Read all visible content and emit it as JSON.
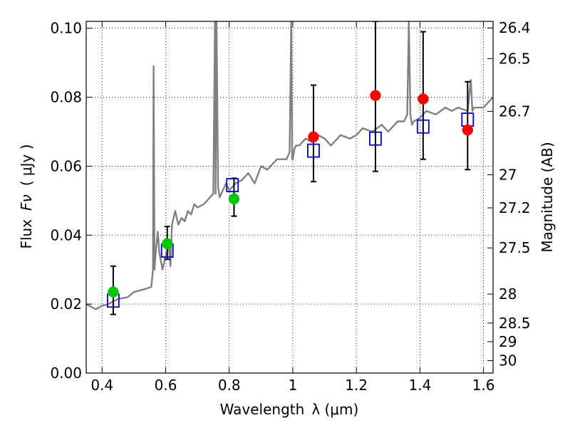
{
  "chart_data": {
    "type": "scatter",
    "xlabel": "Wavelength",
    "xlabel_symbol": "λ (μm)",
    "ylabel": "Flux",
    "ylabel_symbol": "Fν",
    "ylabel_unit": "( μJy )",
    "y2label": "Magnitude (AB)",
    "xlim": [
      0.35,
      1.63
    ],
    "ylim": [
      0.0,
      0.102
    ],
    "grid": true,
    "x_ticks": [
      0.4,
      0.6,
      0.8,
      1.0,
      1.2,
      1.4,
      1.6
    ],
    "x_tick_labels": [
      "0.4",
      "0.6",
      "0.8",
      "1",
      "1.2",
      "1.4",
      "1.6"
    ],
    "y_ticks": [
      0.0,
      0.02,
      0.04,
      0.06,
      0.08,
      0.1
    ],
    "y_tick_labels": [
      "0.00",
      "0.02",
      "0.04",
      "0.06",
      "0.08",
      "0.10"
    ],
    "y2_ticks": [
      {
        "label": "26.4",
        "flux": 0.1001
      },
      {
        "label": "26.5",
        "flux": 0.0912
      },
      {
        "label": "26.7",
        "flux": 0.0759
      },
      {
        "label": "27",
        "flux": 0.0575
      },
      {
        "label": "27.2",
        "flux": 0.0479
      },
      {
        "label": "27.5",
        "flux": 0.0363
      },
      {
        "label": "28",
        "flux": 0.0229
      },
      {
        "label": "28.5",
        "flux": 0.0145
      },
      {
        "label": "29",
        "flux": 0.0091
      },
      {
        "label": "30",
        "flux": 0.0036
      }
    ],
    "series": [
      {
        "kind": "line",
        "color": "#808080",
        "x": [
          0.35,
          0.37,
          0.38,
          0.4,
          0.42,
          0.45,
          0.48,
          0.5,
          0.52,
          0.54,
          0.555,
          0.56,
          0.562,
          0.565,
          0.568,
          0.575,
          0.58,
          0.59,
          0.6,
          0.61,
          0.615,
          0.62,
          0.63,
          0.64,
          0.65,
          0.66,
          0.67,
          0.68,
          0.69,
          0.7,
          0.72,
          0.74,
          0.75,
          0.755,
          0.757,
          0.76,
          0.765,
          0.77,
          0.78,
          0.79,
          0.8,
          0.81,
          0.82,
          0.84,
          0.86,
          0.88,
          0.9,
          0.92,
          0.95,
          0.98,
          0.99,
          0.995,
          0.998,
          1.0,
          1.005,
          1.01,
          1.02,
          1.04,
          1.06,
          1.08,
          1.1,
          1.12,
          1.15,
          1.18,
          1.2,
          1.22,
          1.25,
          1.28,
          1.3,
          1.33,
          1.35,
          1.36,
          1.365,
          1.37,
          1.375,
          1.38,
          1.4,
          1.42,
          1.45,
          1.48,
          1.5,
          1.52,
          1.55,
          1.56,
          1.565,
          1.57,
          1.6,
          1.63
        ],
        "y": [
          0.02,
          0.019,
          0.0185,
          0.0195,
          0.02,
          0.0215,
          0.022,
          0.0235,
          0.024,
          0.0245,
          0.025,
          0.03,
          0.089,
          0.03,
          0.034,
          0.041,
          0.035,
          0.03,
          0.034,
          0.037,
          0.031,
          0.043,
          0.047,
          0.043,
          0.045,
          0.044,
          0.047,
          0.046,
          0.049,
          0.048,
          0.049,
          0.051,
          0.052,
          0.102,
          0.052,
          0.102,
          0.054,
          0.051,
          0.053,
          0.055,
          0.053,
          0.054,
          0.055,
          0.056,
          0.058,
          0.055,
          0.06,
          0.059,
          0.062,
          0.062,
          0.064,
          0.102,
          0.062,
          0.062,
          0.065,
          0.066,
          0.066,
          0.068,
          0.067,
          0.069,
          0.068,
          0.066,
          0.069,
          0.068,
          0.069,
          0.071,
          0.07,
          0.072,
          0.07,
          0.073,
          0.073,
          0.075,
          0.102,
          0.075,
          0.072,
          0.073,
          0.074,
          0.076,
          0.075,
          0.077,
          0.076,
          0.077,
          0.076,
          0.085,
          0.076,
          0.077,
          0.077,
          0.08
        ]
      },
      {
        "kind": "squares",
        "color": "#0000c8",
        "x": [
          0.435,
          0.605,
          0.81,
          1.065,
          1.26,
          1.41,
          1.55
        ],
        "y": [
          0.021,
          0.0355,
          0.0545,
          0.0645,
          0.068,
          0.0715,
          0.0735
        ]
      },
      {
        "kind": "points_with_errorbars",
        "color": "#00c800",
        "x": [
          0.435,
          0.605,
          0.815
        ],
        "y": [
          0.0235,
          0.0375,
          0.0505
        ],
        "yerr_low": [
          0.017,
          0.033,
          0.0455
        ],
        "yerr_high": [
          0.031,
          0.0425,
          0.0565
        ]
      },
      {
        "kind": "points_with_errorbars",
        "color": "#ff0000",
        "x": [
          1.065,
          1.26,
          1.41,
          1.55
        ],
        "y": [
          0.0685,
          0.0805,
          0.0795,
          0.0705
        ],
        "yerr_low": [
          0.0555,
          0.0585,
          0.062,
          0.059
        ],
        "yerr_high": [
          0.0835,
          0.102,
          0.099,
          0.0845
        ]
      }
    ]
  }
}
